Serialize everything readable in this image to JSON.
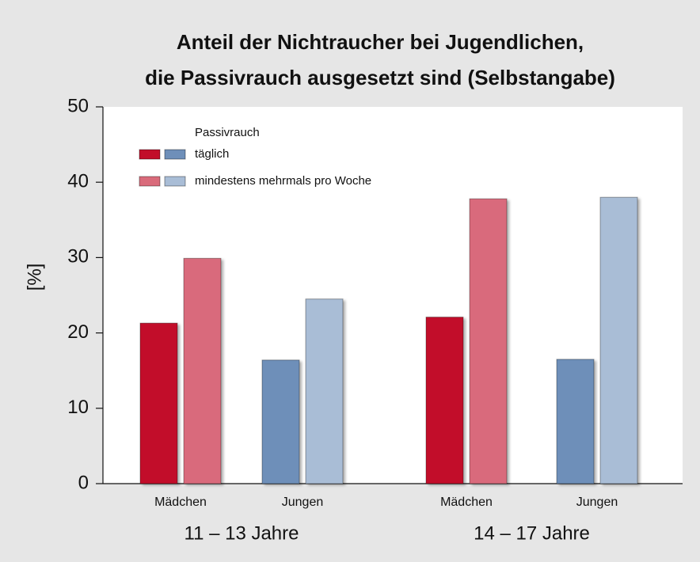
{
  "chart_data": {
    "type": "bar",
    "title": [
      "Anteil der Nichtraucher bei Jugendlichen,",
      "die Passivrauch ausgesetzt sind (Selbstangabe)"
    ],
    "ylabel": "[%]",
    "legend_title": "Passivrauch",
    "categories": [
      "Mädchen",
      "Jungen",
      "Mädchen",
      "Jungen"
    ],
    "groups": [
      "11 – 13 Jahre",
      "14 – 17 Jahre"
    ],
    "series": [
      {
        "name": "täglich",
        "colors": [
          "#c20e2a",
          "#6e8fb9",
          "#c20e2a",
          "#6e8fb9"
        ],
        "values": [
          21.3,
          16.4,
          22.1,
          16.5
        ]
      },
      {
        "name": "mindestens mehrmals pro Woche",
        "colors": [
          "#d96b7b",
          "#a9bdd6",
          "#d96b7b",
          "#a9bdd6"
        ],
        "values": [
          29.9,
          24.5,
          37.8,
          38.0
        ]
      }
    ],
    "ylim": [
      0,
      50
    ],
    "yticks": [
      0,
      10,
      20,
      30,
      40,
      50
    ],
    "legend": "upper left"
  }
}
